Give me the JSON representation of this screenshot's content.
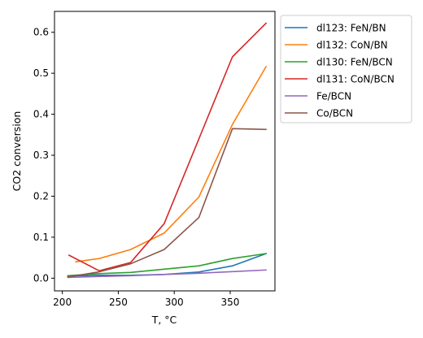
{
  "chart_data": {
    "type": "line",
    "title": "",
    "xlabel": "T, °C",
    "ylabel": "CO2 conversion",
    "xlim": [
      193,
      390
    ],
    "ylim": [
      -0.031,
      0.651
    ],
    "xticks": [
      200,
      250,
      300,
      350
    ],
    "yticks": [
      0.0,
      0.1,
      0.2,
      0.3,
      0.4,
      0.5,
      0.6
    ],
    "xtick_labels": [
      "200",
      "250",
      "300",
      "350"
    ],
    "ytick_labels": [
      "0.0",
      "0.1",
      "0.2",
      "0.3",
      "0.4",
      "0.5",
      "0.6"
    ],
    "grid": false,
    "legend_position": "outside-right-top",
    "series": [
      {
        "name": "dl123: FeN/BN",
        "color": "#1f77b4",
        "x": [
          205,
          232,
          261,
          291,
          322,
          352,
          382
        ],
        "y": [
          0.005,
          0.007,
          0.007,
          0.009,
          0.015,
          0.03,
          0.06
        ]
      },
      {
        "name": "dl132: CoN/BN",
        "color": "#ff7f0e",
        "x": [
          212,
          233,
          261,
          291,
          322,
          352,
          382
        ],
        "y": [
          0.04,
          0.048,
          0.07,
          0.11,
          0.198,
          0.375,
          0.516
        ]
      },
      {
        "name": "dl130: FeN/BCN",
        "color": "#2ca02c",
        "x": [
          205,
          232,
          261,
          291,
          322,
          352,
          382
        ],
        "y": [
          0.006,
          0.011,
          0.014,
          0.022,
          0.03,
          0.048,
          0.06
        ]
      },
      {
        "name": "dl131: CoN/BCN",
        "color": "#d62728",
        "x": [
          206,
          233,
          261,
          291,
          322,
          352,
          382
        ],
        "y": [
          0.056,
          0.018,
          0.038,
          0.133,
          0.34,
          0.54,
          0.622
        ]
      },
      {
        "name": "Fe/BCN",
        "color": "#9467bd",
        "x": [
          205,
          232,
          261,
          291,
          322,
          352,
          382
        ],
        "y": [
          0.002,
          0.004,
          0.006,
          0.009,
          0.012,
          0.016,
          0.02
        ]
      },
      {
        "name": "Co/BCN",
        "color": "#8c564b",
        "x": [
          205,
          232,
          261,
          291,
          322,
          352,
          382
        ],
        "y": [
          0.003,
          0.015,
          0.035,
          0.07,
          0.148,
          0.365,
          0.363
        ]
      }
    ]
  }
}
